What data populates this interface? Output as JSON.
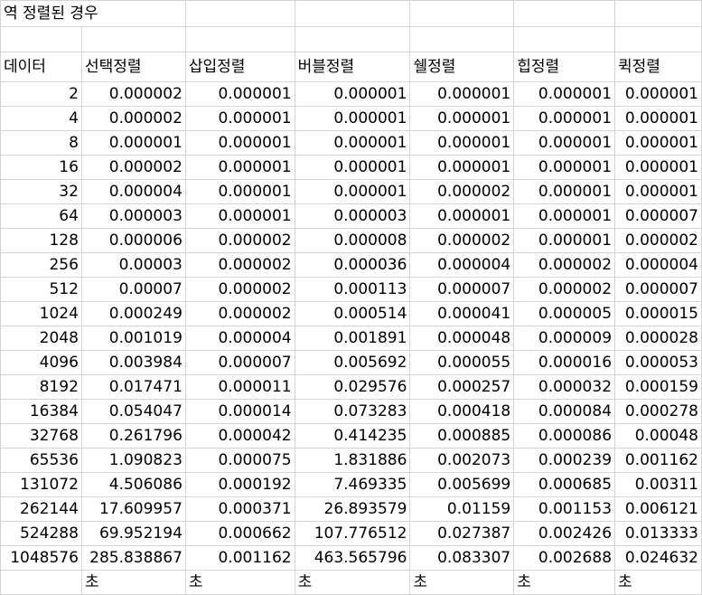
{
  "title": "역 정렬된 경우",
  "headers": [
    "데이터",
    "선택정렬",
    "삽입정렬",
    "버블정렬",
    "쉘정렬",
    "힙정렬",
    "퀵정렬"
  ],
  "rows": [
    [
      "2",
      "0.000002",
      "0.000001",
      "0.000001",
      "0.000001",
      "0.000001",
      "0.000001"
    ],
    [
      "4",
      "0.000002",
      "0.000001",
      "0.000001",
      "0.000001",
      "0.000001",
      "0.000001"
    ],
    [
      "8",
      "0.000001",
      "0.000001",
      "0.000001",
      "0.000001",
      "0.000001",
      "0.000001"
    ],
    [
      "16",
      "0.000002",
      "0.000001",
      "0.000001",
      "0.000001",
      "0.000001",
      "0.000001"
    ],
    [
      "32",
      "0.000004",
      "0.000001",
      "0.000001",
      "0.000002",
      "0.000001",
      "0.000001"
    ],
    [
      "64",
      "0.000003",
      "0.000001",
      "0.000003",
      "0.000001",
      "0.000001",
      "0.000007"
    ],
    [
      "128",
      "0.000006",
      "0.000002",
      "0.000008",
      "0.000002",
      "0.000001",
      "0.000002"
    ],
    [
      "256",
      "0.00003",
      "0.000002",
      "0.000036",
      "0.000004",
      "0.000002",
      "0.000004"
    ],
    [
      "512",
      "0.00007",
      "0.000002",
      "0.000113",
      "0.000007",
      "0.000002",
      "0.000007"
    ],
    [
      "1024",
      "0.000249",
      "0.000002",
      "0.000514",
      "0.000041",
      "0.000005",
      "0.000015"
    ],
    [
      "2048",
      "0.001019",
      "0.000004",
      "0.001891",
      "0.000048",
      "0.000009",
      "0.000028"
    ],
    [
      "4096",
      "0.003984",
      "0.000007",
      "0.005692",
      "0.000055",
      "0.000016",
      "0.000053"
    ],
    [
      "8192",
      "0.017471",
      "0.000011",
      "0.029576",
      "0.000257",
      "0.000032",
      "0.000159"
    ],
    [
      "16384",
      "0.054047",
      "0.000014",
      "0.073283",
      "0.000418",
      "0.000084",
      "0.000278"
    ],
    [
      "32768",
      "0.261796",
      "0.000042",
      "0.414235",
      "0.000885",
      "0.000086",
      "0.00048"
    ],
    [
      "65536",
      "1.090823",
      "0.000075",
      "1.831886",
      "0.002073",
      "0.000239",
      "0.001162"
    ],
    [
      "131072",
      "4.506086",
      "0.000192",
      "7.469335",
      "0.005699",
      "0.000685",
      "0.00311"
    ],
    [
      "262144",
      "17.609957",
      "0.000371",
      "26.893579",
      "0.01159",
      "0.001153",
      "0.006121"
    ],
    [
      "524288",
      "69.952194",
      "0.000662",
      "107.776512",
      "0.027387",
      "0.002426",
      "0.013333"
    ],
    [
      "1048576",
      "285.838867",
      "0.001162",
      "463.565796",
      "0.083307",
      "0.002688",
      "0.024632"
    ]
  ],
  "unit_row": [
    "",
    "초",
    "초",
    "초",
    "초",
    "초",
    "초"
  ]
}
